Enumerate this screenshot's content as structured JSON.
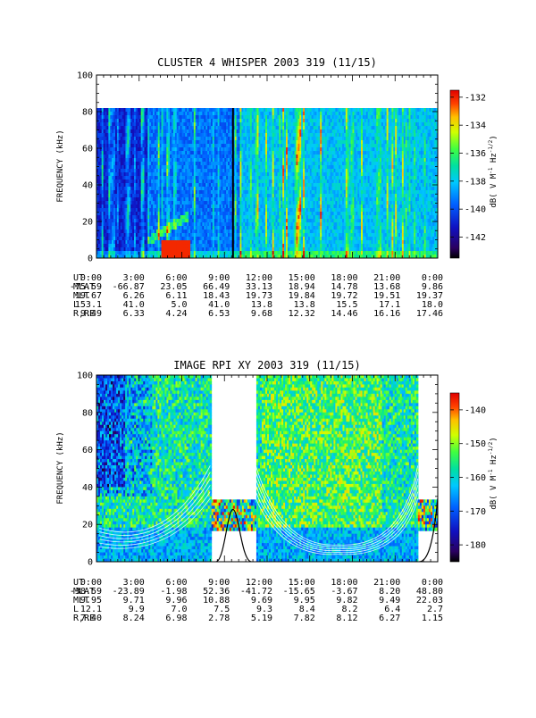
{
  "chart_data": [
    {
      "type": "heatmap",
      "title": "CLUSTER 4 WHISPER 2003 319 (11/15)",
      "ylabel": "FREQUENCY (kHz)",
      "colorbar_label": "dB( V M⁻¹ Hz⁻¹ᐟ²)",
      "colorbar_label_parts": [
        "dB( V M",
        "-1",
        " Hz",
        "-1/2",
        ")"
      ],
      "ylim": [
        0,
        100
      ],
      "data_ymax": 80,
      "xlim_hours": [
        0,
        24
      ],
      "ytick_values": [
        0,
        20,
        40,
        60,
        80,
        100
      ],
      "ytick_labels": [
        "0",
        "20",
        "40",
        "60",
        "80",
        "100"
      ],
      "colorbar_range": [
        -143.5,
        -131.5
      ],
      "colorbar_ticks": [
        -132,
        -134,
        -136,
        -138,
        -140,
        -142
      ],
      "colorbar_tick_labels": [
        "-132",
        "-134",
        "-136",
        "-138",
        "-140",
        "-142"
      ],
      "ephemeris": {
        "row_labels": [
          "UT",
          "MLAT",
          "MLT",
          "L",
          "R,RE"
        ],
        "UT": [
          "0:00",
          "3:00",
          "6:00",
          "9:00",
          "12:00",
          "15:00",
          "18:00",
          "21:00",
          "0:00"
        ],
        "MLAT": [
          "-75.59",
          "-66.87",
          "23.05",
          "66.49",
          "33.13",
          "18.94",
          "14.78",
          "13.68",
          "9.86"
        ],
        "MLT": [
          "19.67",
          "6.26",
          "6.11",
          "18.43",
          "19.73",
          "19.84",
          "19.72",
          "19.51",
          "19.37"
        ],
        "L": [
          "153.1",
          "41.0",
          "5.0",
          "41.0",
          "13.8",
          "13.8",
          "15.5",
          "17.1",
          "18.0"
        ],
        "R,RE": [
          "9.49",
          "6.33",
          "4.24",
          "6.53",
          "9.68",
          "12.32",
          "14.46",
          "16.16",
          "17.46"
        ]
      }
    },
    {
      "type": "heatmap",
      "title": "IMAGE RPI XY 2003 319 (11/15)",
      "ylabel": "FREQUENCY (kHz)",
      "colorbar_label": "dB( V M⁻¹ Hz⁻¹ᐟ²)",
      "colorbar_label_parts": [
        "dB( V M",
        "-1",
        " Hz",
        "-1/2",
        ")"
      ],
      "ylim": [
        0,
        100
      ],
      "xlim_hours": [
        0,
        24
      ],
      "ytick_values": [
        0,
        20,
        40,
        60,
        80,
        100
      ],
      "ytick_labels": [
        "0",
        "20",
        "40",
        "60",
        "80",
        "100"
      ],
      "colorbar_range": [
        -185,
        -135
      ],
      "colorbar_ticks": [
        -140,
        -150,
        -160,
        -170,
        -180
      ],
      "colorbar_tick_labels": [
        "-140",
        "-150",
        "-160",
        "-170",
        "-180"
      ],
      "data_gaps_hours": [
        [
          8.0,
          11.2
        ],
        [
          22.6,
          24
        ]
      ],
      "ephemeris": {
        "row_labels": [
          "UT",
          "MLAT",
          "MLT",
          "L",
          "R,RE"
        ],
        "UT": [
          "0:00",
          "3:00",
          "6:00",
          "9:00",
          "12:00",
          "15:00",
          "18:00",
          "21:00",
          "0:00"
        ],
        "MLAT": [
          "-38.59",
          "-23.89",
          "-1.98",
          "52.36",
          "-41.72",
          "-15.65",
          "-3.67",
          "8.20",
          "48.80"
        ],
        "MLT": [
          "9.95",
          "9.71",
          "9.96",
          "10.88",
          "9.69",
          "9.95",
          "9.82",
          "9.49",
          "22.03"
        ],
        "L": [
          "12.1",
          "9.9",
          "7.0",
          "7.5",
          "9.3",
          "8.4",
          "8.2",
          "6.4",
          "2.7"
        ],
        "R,RE": [
          "7.40",
          "8.24",
          "6.98",
          "2.78",
          "5.19",
          "7.82",
          "8.12",
          "6.27",
          "1.15"
        ]
      }
    }
  ]
}
